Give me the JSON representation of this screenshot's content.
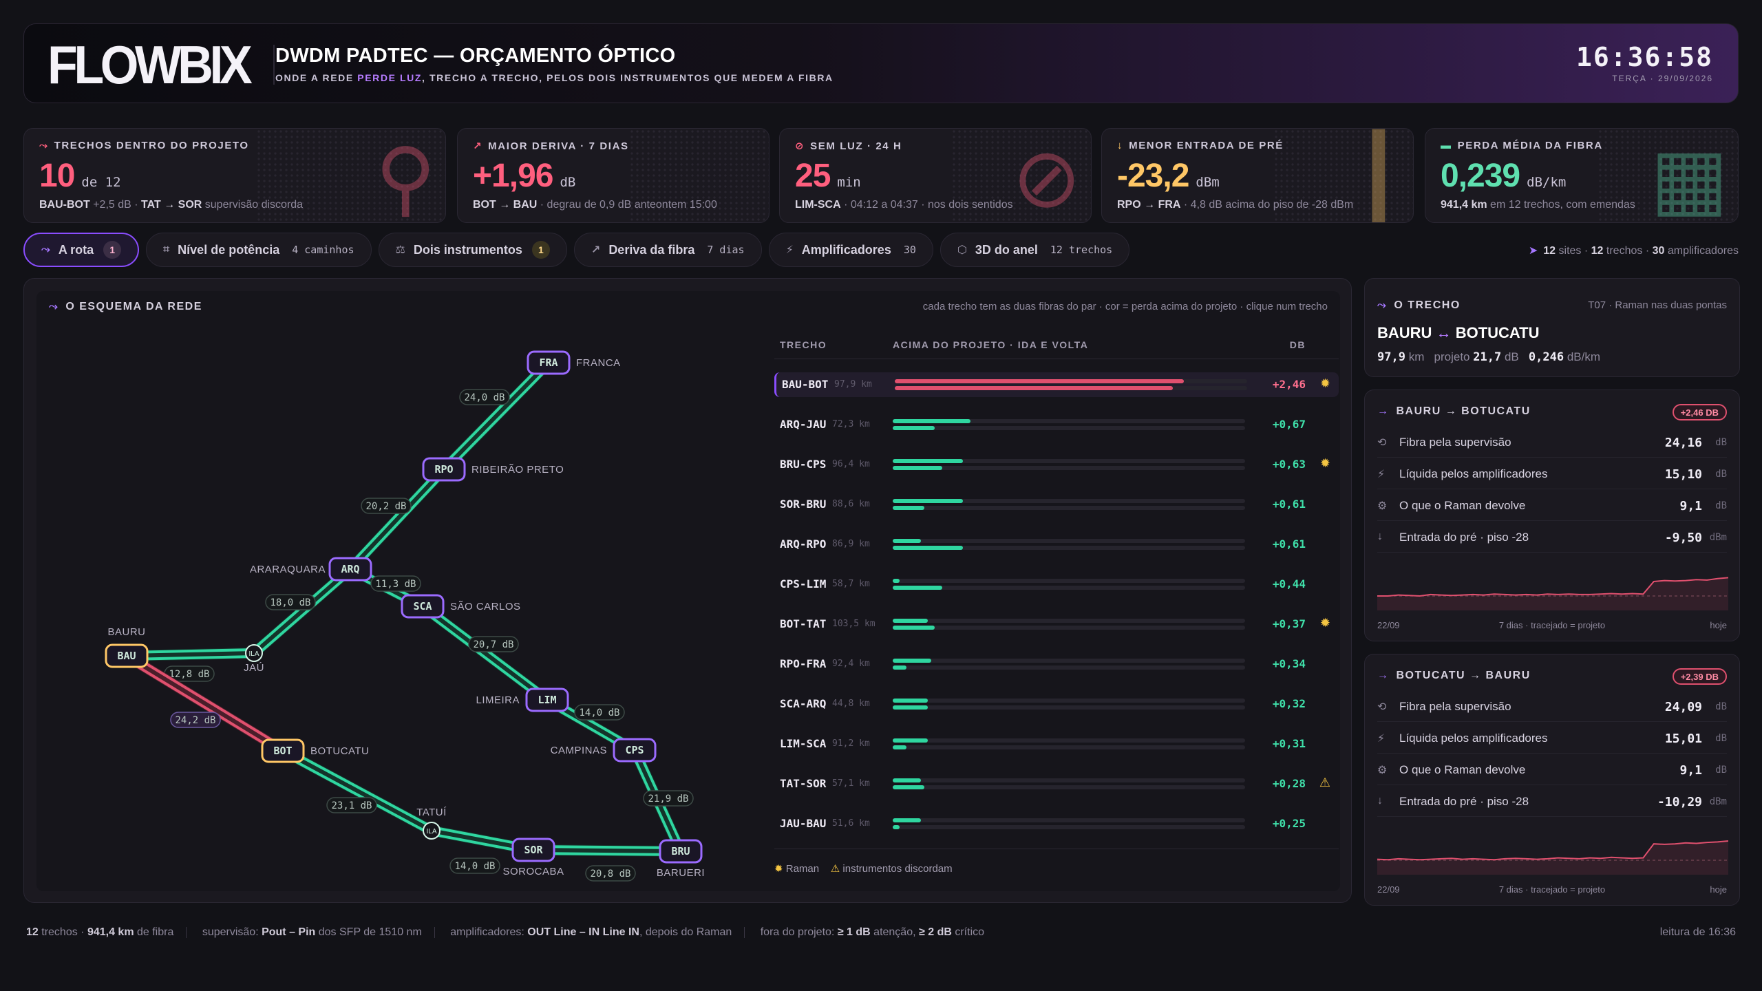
{
  "header": {
    "logo": "FLOWBIX",
    "title": "DWDM PADTEC — ORÇAMENTO ÓPTICO",
    "subtitle_pre": "ONDE A REDE ",
    "subtitle_hl": "PERDE LUZ",
    "subtitle_post": ", TRECHO A TRECHO, PELOS DOIS INSTRUMENTOS QUE MEDEM A FIBRA",
    "time": "16:36:58",
    "date": "TERÇA · 29/09/2026"
  },
  "kpis": [
    {
      "label": "TRECHOS DENTRO DO PROJETO",
      "value": "10",
      "unit": "de 12",
      "color": "#ff5f7e",
      "icon": "route-icon",
      "detail_b1": "BAU-BOT",
      "detail_t1": " +2,5 dB · ",
      "detail_b2": "TAT → SOR",
      "detail_t2": " supervisão discorda"
    },
    {
      "label": "MAIOR DERIVA · 7 DIAS",
      "value": "+1,96",
      "unit": "dB",
      "color": "#ff5f7e",
      "icon": "trend-up-icon",
      "detail_b1": "BOT → BAU",
      "detail_t1": " · degrau de 0,9 dB anteontem 15:00",
      "detail_b2": "",
      "detail_t2": ""
    },
    {
      "label": "SEM LUZ · 24 H",
      "value": "25",
      "unit": "min",
      "color": "#ff5f7e",
      "icon": "no-light-icon",
      "detail_b1": "LIM-SCA",
      "detail_t1": " · 04:12 a 04:37 · nos dois sentidos",
      "detail_b2": "",
      "detail_t2": ""
    },
    {
      "label": "MENOR ENTRADA DE PRÉ",
      "value": "-23,2",
      "unit": "dBm",
      "color": "#ffc766",
      "icon": "arrow-down-icon",
      "detail_b1": "RPO → FRA",
      "detail_t1": " · 4,8 dB acima do piso de -28 dBm",
      "detail_b2": "",
      "detail_t2": ""
    },
    {
      "label": "PERDA MÉDIA DA FIBRA",
      "value": "0,239",
      "unit": "dB/km",
      "color": "#5fe0b0",
      "icon": "ruler-icon",
      "detail_b1": "941,4 km",
      "detail_t1": " em 12 trechos, com emendas",
      "detail_b2": "",
      "detail_t2": ""
    }
  ],
  "tabs": [
    {
      "label": "A rota",
      "count": "",
      "badge": "1"
    },
    {
      "label": "Nível de potência",
      "count": "4 caminhos",
      "badge": ""
    },
    {
      "label": "Dois instrumentos",
      "count": "",
      "badge": "1"
    },
    {
      "label": "Deriva da fibra",
      "count": "7 dias",
      "badge": ""
    },
    {
      "label": "Amplificadores",
      "count": "30",
      "badge": ""
    },
    {
      "label": "3D do anel",
      "count": "12 trechos",
      "badge": ""
    }
  ],
  "summary": {
    "sites": "12",
    "sites_l": "sites",
    "trechos": "12",
    "trechos_l": "trechos",
    "amps": "30",
    "amps_l": "amplificadores"
  },
  "scheme": {
    "title": "O ESQUEMA DA REDE",
    "hint": "cada trecho tem as duas fibras do par · cor = perda acima do projeto · clique num trecho"
  },
  "network": {
    "nodes": [
      {
        "id": "FRA",
        "name": "FRANCA"
      },
      {
        "id": "RPO",
        "name": "RIBEIRÃO PRETO"
      },
      {
        "id": "ARQ",
        "name": "ARARAQUARA"
      },
      {
        "id": "SCA",
        "name": "SÃO CARLOS"
      },
      {
        "id": "LIM",
        "name": "LIMEIRA"
      },
      {
        "id": "CPS",
        "name": "CAMPINAS"
      },
      {
        "id": "BRU",
        "name": "BARUERI"
      },
      {
        "id": "SOR",
        "name": "SOROCABA"
      },
      {
        "id": "BOT",
        "name": "BOTUCATU"
      },
      {
        "id": "BAU",
        "name": "BAURU"
      },
      {
        "id": "ILA1",
        "name": "JAÚ"
      },
      {
        "id": "ILA2",
        "name": "TATUÍ"
      }
    ],
    "ila_label": "ILA",
    "links": [
      "24,0 dB",
      "20,2 dB",
      "11,3 dB",
      "18,0 dB",
      "20,7 dB",
      "14,0 dB",
      "21,9 dB",
      "12,8 dB",
      "24,2 dB",
      "23,1 dB",
      "14,0 dB",
      "20,8 dB"
    ]
  },
  "table": {
    "col1": "TRECHO",
    "col2": "ACIMA DO PROJETO · IDA E VOLTA",
    "col3": "DB",
    "rows": [
      {
        "name": "BAU-BOT",
        "km": "97,9 km",
        "value": "+2,46",
        "ida": 0.82,
        "volta": 0.79,
        "status": "critical",
        "icon": "raman"
      },
      {
        "name": "ARQ-JAU",
        "km": "72,3 km",
        "value": "+0,67",
        "ida": 0.22,
        "volta": 0.12,
        "status": "ok",
        "icon": ""
      },
      {
        "name": "BRU-CPS",
        "km": "96,4 km",
        "value": "+0,63",
        "ida": 0.2,
        "volta": 0.14,
        "status": "ok",
        "icon": "raman"
      },
      {
        "name": "SOR-BRU",
        "km": "88,6 km",
        "value": "+0,61",
        "ida": 0.2,
        "volta": 0.09,
        "status": "ok",
        "icon": ""
      },
      {
        "name": "ARQ-RPO",
        "km": "86,9 km",
        "value": "+0,61",
        "ida": 0.08,
        "volta": 0.2,
        "status": "ok",
        "icon": ""
      },
      {
        "name": "CPS-LIM",
        "km": "58,7 km",
        "value": "+0,44",
        "ida": 0.02,
        "volta": 0.14,
        "status": "ok",
        "icon": ""
      },
      {
        "name": "BOT-TAT",
        "km": "103,5 km",
        "value": "+0,37",
        "ida": 0.1,
        "volta": 0.12,
        "status": "ok",
        "icon": "raman"
      },
      {
        "name": "RPO-FRA",
        "km": "92,4 km",
        "value": "+0,34",
        "ida": 0.11,
        "volta": 0.04,
        "status": "ok",
        "icon": ""
      },
      {
        "name": "SCA-ARQ",
        "km": "44,8 km",
        "value": "+0,32",
        "ida": 0.1,
        "volta": 0.1,
        "status": "ok",
        "icon": ""
      },
      {
        "name": "LIM-SCA",
        "km": "91,2 km",
        "value": "+0,31",
        "ida": 0.1,
        "volta": 0.04,
        "status": "ok",
        "icon": ""
      },
      {
        "name": "TAT-SOR",
        "km": "57,1 km",
        "value": "+0,28",
        "ida": 0.08,
        "volta": 0.09,
        "status": "ok",
        "icon": "warn"
      },
      {
        "name": "JAU-BAU",
        "km": "51,6 km",
        "value": "+0,25",
        "ida": 0.08,
        "volta": 0.02,
        "status": "ok",
        "icon": ""
      }
    ],
    "legend_raman": "Raman",
    "legend_warn": "instrumentos discordam"
  },
  "trecho": {
    "title": "O TRECHO",
    "meta": "T07 · Raman nas duas pontas",
    "from": "BAURU",
    "arrow": "↔",
    "to": "BOTUCATU",
    "km": "97,9",
    "km_u": "km",
    "proj_l": "projeto",
    "proj": "21,7",
    "proj_u": "dB",
    "loss": "0,246",
    "loss_u": "dB/km"
  },
  "dirs": [
    {
      "title": "BAURU → BOTUCATU",
      "pill": "+2,46 DB",
      "rows": [
        {
          "label": "Fibra pela supervisão",
          "value": "24,16",
          "unit": "dB",
          "icon": "fiber-icon"
        },
        {
          "label": "Líquida pelos amplificadores",
          "value": "15,10",
          "unit": "dB",
          "icon": "bolt-icon"
        },
        {
          "label": "O que o Raman devolve",
          "value": "9,1",
          "unit": "dB",
          "icon": "gear-icon"
        },
        {
          "label": "Entrada do pré · piso -28",
          "value": "-9,50",
          "unit": "dBm",
          "icon": "arrow-down-icon"
        }
      ],
      "spark": [
        0.3,
        0.3,
        0.32,
        0.31,
        0.3,
        0.33,
        0.32,
        0.31,
        0.32,
        0.33,
        0.32,
        0.34,
        0.33,
        0.32,
        0.33,
        0.32,
        0.34,
        0.33,
        0.34,
        0.33,
        0.33,
        0.34,
        0.35,
        0.34,
        0.35,
        0.34,
        0.6,
        0.62,
        0.61,
        0.62,
        0.64,
        0.63,
        0.66,
        0.68
      ],
      "x_start": "22/09",
      "x_mid": "7 dias · tracejado = projeto",
      "x_end": "hoje"
    },
    {
      "title": "BOTUCATU → BAURU",
      "pill": "+2,39 DB",
      "rows": [
        {
          "label": "Fibra pela supervisão",
          "value": "24,09",
          "unit": "dB",
          "icon": "fiber-icon"
        },
        {
          "label": "Líquida pelos amplificadores",
          "value": "15,01",
          "unit": "dB",
          "icon": "bolt-icon"
        },
        {
          "label": "O que o Raman devolve",
          "value": "9,1",
          "unit": "dB",
          "icon": "gear-icon"
        },
        {
          "label": "Entrada do pré · piso -28",
          "value": "-10,29",
          "unit": "dBm",
          "icon": "arrow-down-icon"
        }
      ],
      "spark": [
        0.32,
        0.31,
        0.33,
        0.32,
        0.31,
        0.32,
        0.33,
        0.34,
        0.32,
        0.33,
        0.32,
        0.31,
        0.33,
        0.34,
        0.33,
        0.32,
        0.33,
        0.35,
        0.34,
        0.33,
        0.35,
        0.34,
        0.36,
        0.35,
        0.34,
        0.35,
        0.64,
        0.63,
        0.64,
        0.66,
        0.65,
        0.67,
        0.68,
        0.7
      ],
      "x_start": "22/09",
      "x_mid": "7 dias · tracejado = projeto",
      "x_end": "hoje"
    }
  ],
  "footer": {
    "f1b": "12",
    "f1t": " trechos · ",
    "f1b2": "941,4 km",
    "f1t2": " de fibra",
    "f2t": "supervisão: ",
    "f2b": "Pout – Pin",
    "f2t2": " dos SFP de 1510 nm",
    "f3t": "amplificadores: ",
    "f3b": "OUT Line – IN Line IN",
    "f3t2": ", depois do Raman",
    "f4t": "fora do projeto: ",
    "f4b": "≥ 1 dB",
    "f4t2": " atenção, ",
    "f4b2": "≥ 2 dB",
    "f4t3": " crítico",
    "right": "leitura de 16:36"
  }
}
